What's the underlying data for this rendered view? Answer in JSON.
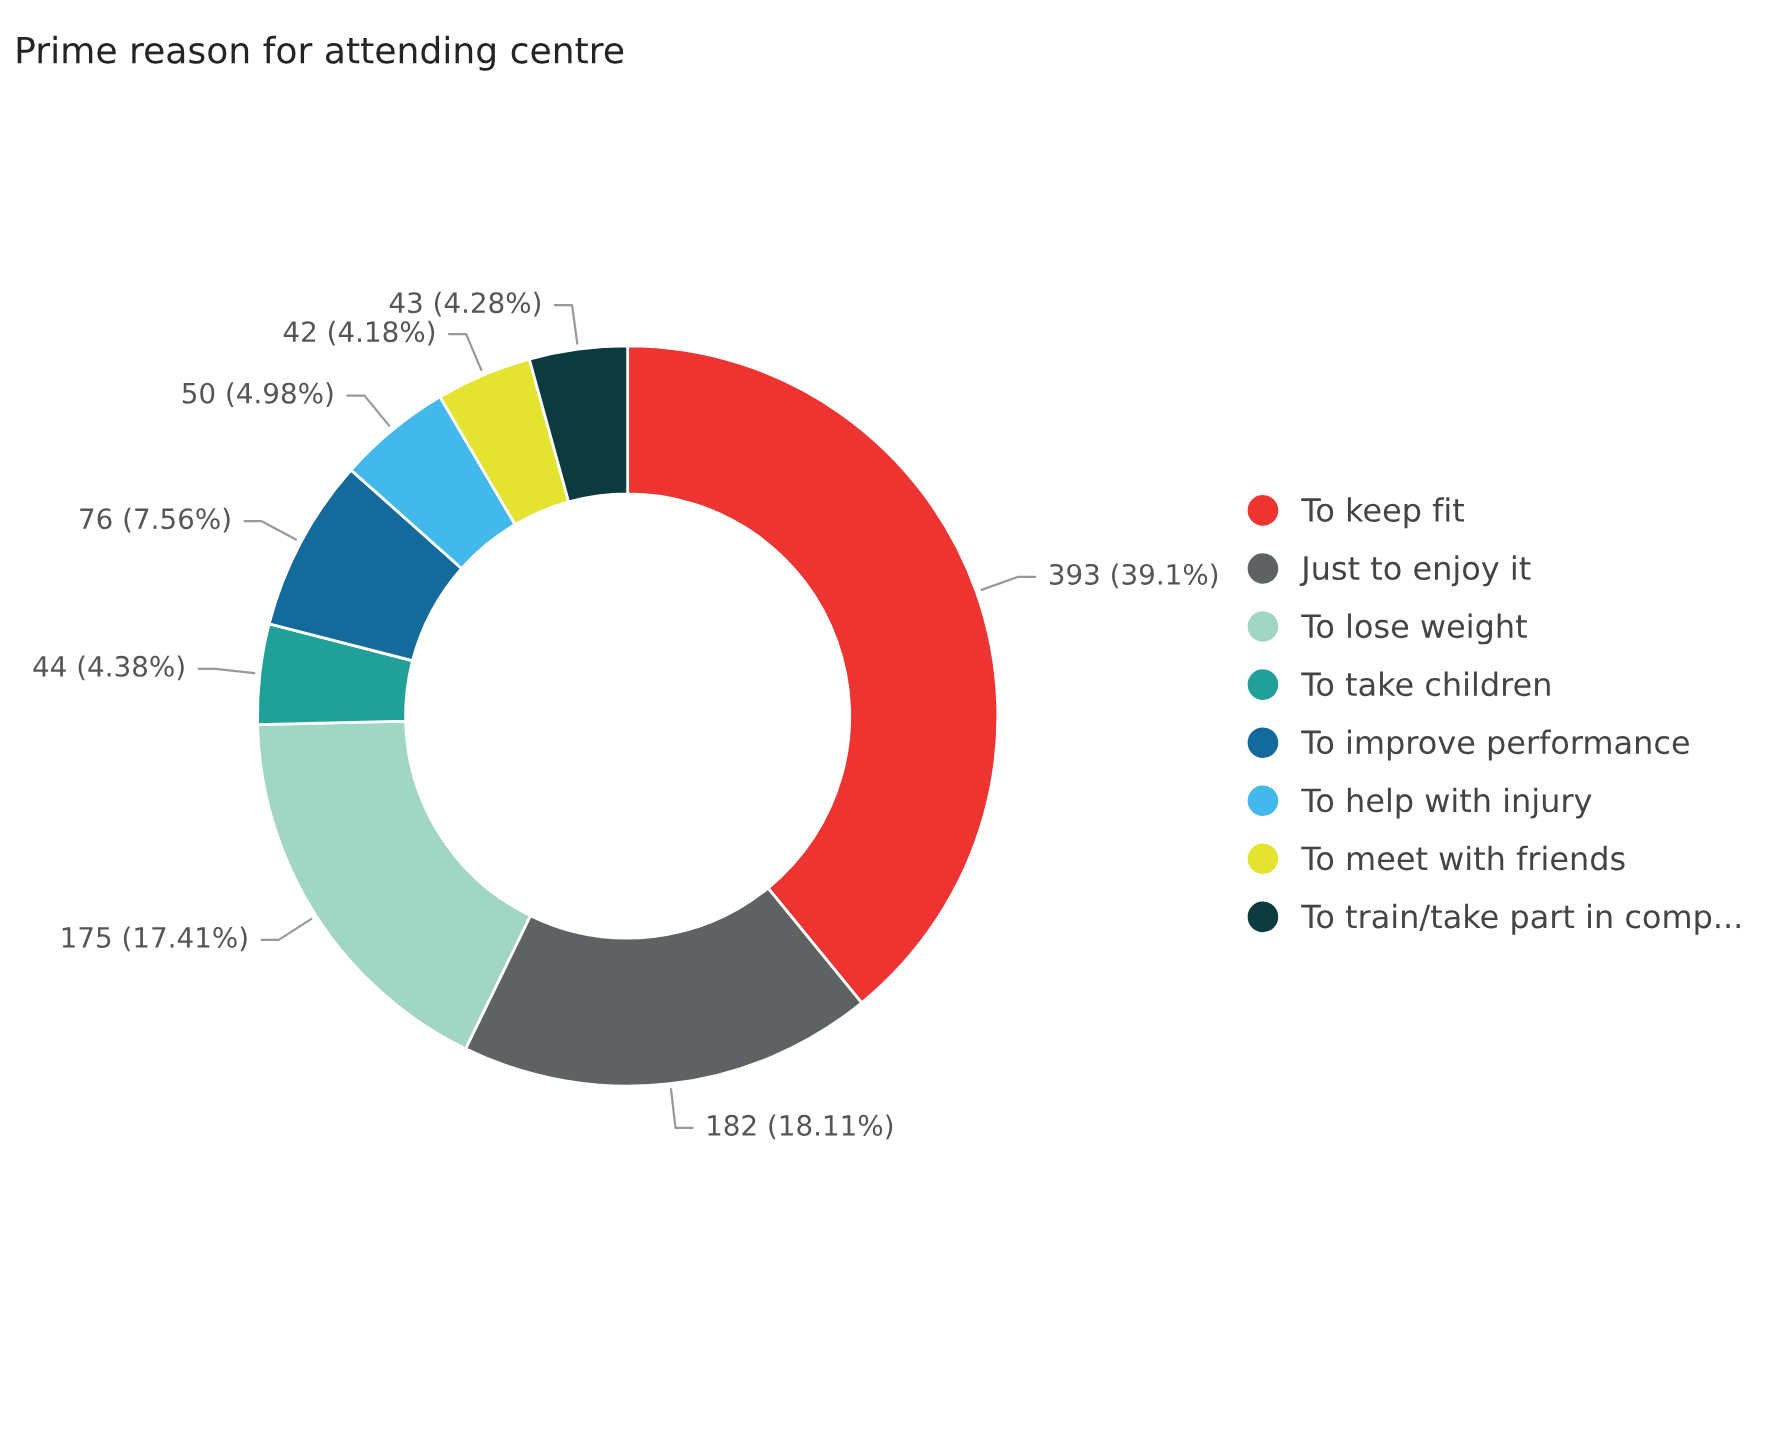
{
  "chart_data": {
    "type": "donut",
    "title": "Prime reason for attending centre",
    "categories": [
      "To keep fit",
      "Just to enjoy it",
      "To lose weight",
      "To take children",
      "To improve performance",
      "To help with injury",
      "To meet with friends",
      "To train/take part in comp..."
    ],
    "values": [
      393,
      182,
      175,
      44,
      76,
      50,
      42,
      43
    ],
    "colors": [
      "#ee3431",
      "#5f6262",
      "#a1d6c5",
      "#21a09a",
      "#136a9b",
      "#43b8ea",
      "#e4e330",
      "#0b3b3f"
    ],
    "value_labels": [
      "393 (39.1%)",
      "182 (18.11%)",
      "175 (17.41%)",
      "44 (4.38%)",
      "76 (7.56%)",
      "50 (4.98%)",
      "42 (4.18%)",
      "43 (4.28%)"
    ],
    "legend": "right"
  }
}
